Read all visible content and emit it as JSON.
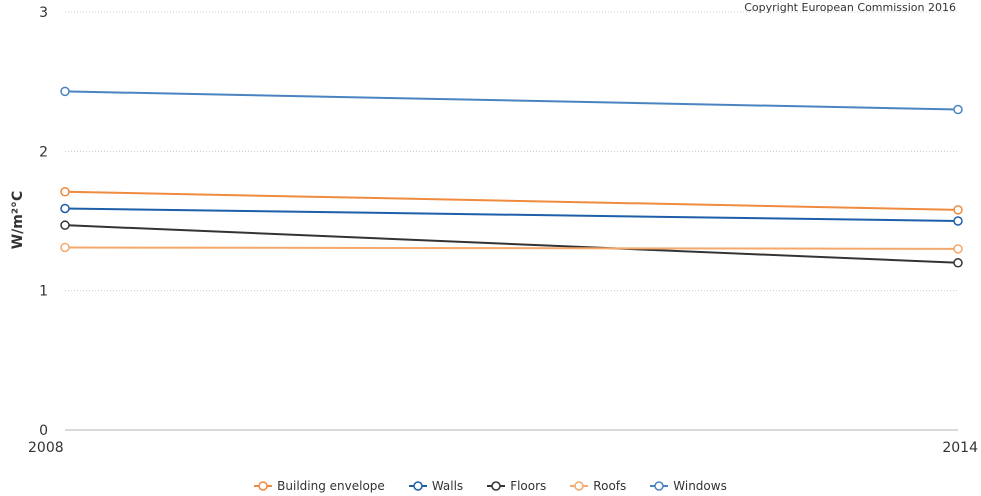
{
  "chart_data": {
    "type": "line",
    "title": "",
    "credit": "Copyright European Commission 2016",
    "ylabel": "W/m²°C",
    "xlabel": "",
    "x": [
      "2008",
      "2014"
    ],
    "ylim": [
      0,
      3
    ],
    "yticks": [
      0,
      1,
      2,
      3
    ],
    "grid": true,
    "legend_position": "bottom",
    "series": [
      {
        "name": "Building envelope",
        "color": "#f08a3e",
        "values": [
          1.71,
          1.58
        ]
      },
      {
        "name": "Walls",
        "color": "#1f5ea8",
        "values": [
          1.59,
          1.5
        ]
      },
      {
        "name": "Floors",
        "color": "#333333",
        "values": [
          1.47,
          1.2
        ]
      },
      {
        "name": "Roofs",
        "color": "#f5a86b",
        "values": [
          1.31,
          1.3
        ]
      },
      {
        "name": "Windows",
        "color": "#4a83c2",
        "values": [
          2.43,
          2.3
        ]
      }
    ]
  }
}
